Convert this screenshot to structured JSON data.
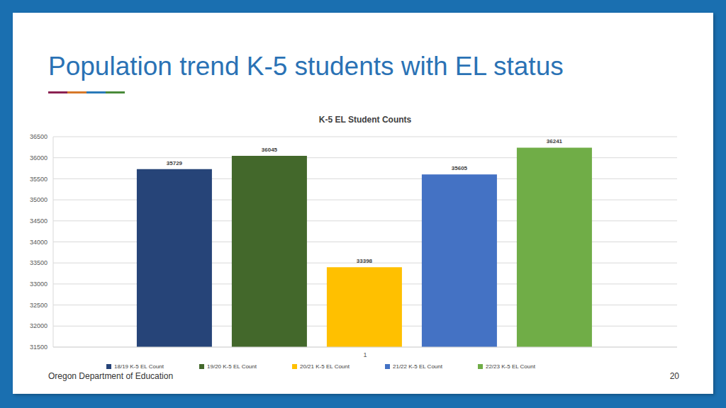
{
  "page": {
    "title": "Population trend K-5 students with EL status",
    "footer": "Oregon Department of Education",
    "number": 20
  },
  "chart_data": {
    "type": "bar",
    "title": "K-5 EL Student Counts",
    "categories": [
      "1"
    ],
    "series": [
      {
        "name": "18/19 K-5 EL Count",
        "color": "#264478",
        "values": [
          35729
        ]
      },
      {
        "name": "19/20 K-5 EL Count",
        "color": "#43682b",
        "values": [
          36045
        ]
      },
      {
        "name": "20/21 K-5 EL Count",
        "color": "#ffc000",
        "values": [
          33398
        ]
      },
      {
        "name": "21/22 K-5 EL Count",
        "color": "#4472c4",
        "values": [
          35605
        ]
      },
      {
        "name": "22/23 K-5 EL Count",
        "color": "#70ad47",
        "values": [
          36241
        ]
      }
    ],
    "ylim": [
      31500,
      36500
    ],
    "yticks": [
      31500,
      32000,
      32500,
      33000,
      33500,
      34000,
      34500,
      35000,
      35500,
      36000,
      36500
    ],
    "grid": true,
    "legend": "bottom",
    "data_labels": true
  }
}
